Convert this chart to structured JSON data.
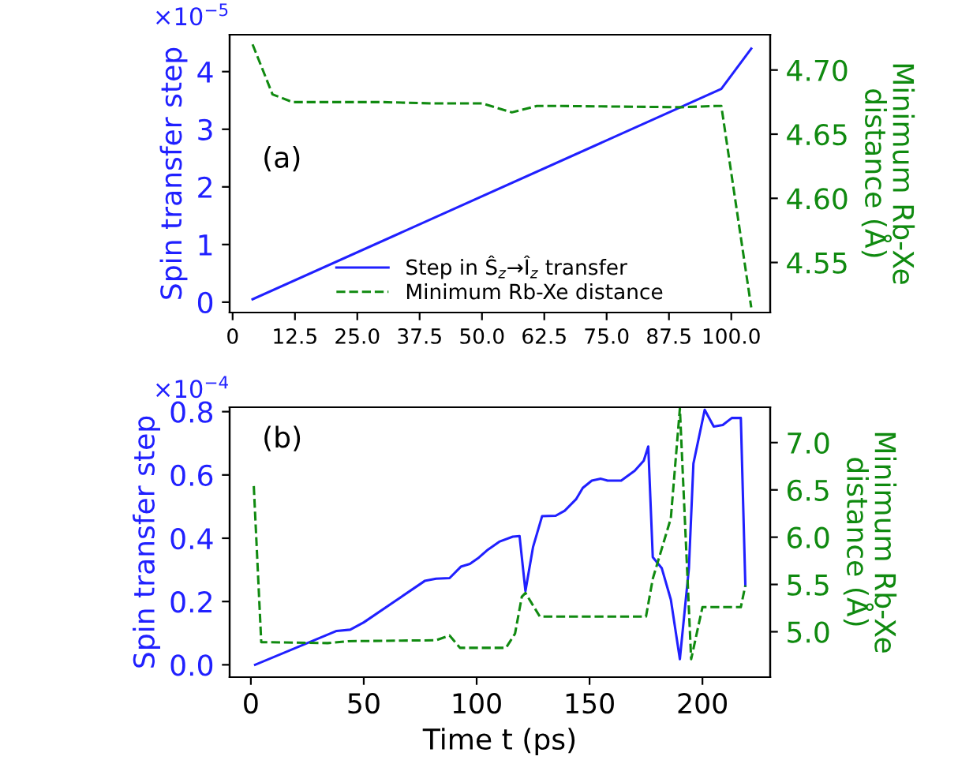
{
  "chart_data": [
    {
      "type": "line",
      "ylabel": "Spin transfer step",
      "y2label": "Minimum Rb-Xe\ndistance (Å)",
      "annotations": [
        "(a)",
        "×10$^{−5}$"
      ],
      "legend": "bottom",
      "grid": false,
      "xlim": [
        -0.6,
        107.8
      ],
      "xticks": [
        0,
        12.5,
        {
          "value": 25,
          "label": "25.0"
        },
        37.5,
        {
          "value": 50,
          "label": "50.0"
        },
        62.5,
        {
          "value": 75,
          "label": "75.0"
        },
        87.5,
        {
          "value": 100,
          "label": "100.0"
        }
      ],
      "ylim": [
        -0.18,
        4.64
      ],
      "yticks": [
        0,
        1,
        2,
        3,
        4
      ],
      "y2lim": [
        4.511,
        4.7275
      ],
      "y2ticks": [
        {
          "value": 4.55,
          "label": "4.55"
        },
        {
          "value": 4.6,
          "label": "4.60"
        },
        {
          "value": 4.65,
          "label": "4.65"
        },
        {
          "value": 4.7,
          "label": "4.70"
        }
      ],
      "series": [
        {
          "name": "Step in Ŝ$_{z}$→Î$_{z}$ transfer",
          "color": "#2020ff",
          "line_style": "solid",
          "x": [
            4,
            98,
            104
          ],
          "values": [
            0.05,
            3.7,
            4.4
          ]
        },
        {
          "name": "Minimum Rb-Xe distance",
          "color": "#108a10",
          "line_style": "dashed",
          "axis": "y2",
          "x": [
            4,
            8,
            12,
            30,
            40,
            50,
            56,
            61,
            65,
            90,
            97,
            98,
            104
          ],
          "values": [
            4.72,
            4.681,
            4.675,
            4.675,
            4.674,
            4.674,
            4.667,
            4.672,
            4.672,
            4.671,
            4.672,
            4.672,
            4.515
          ]
        }
      ]
    },
    {
      "type": "line",
      "xlabel": "Time t (ps)",
      "ylabel": "Spin transfer step",
      "y2label": "Minimum Rb-Xe\ndistance (Å)",
      "annotations": [
        "(b)",
        "×10$^{−4}$"
      ],
      "grid": false,
      "xlim": [
        -9.4,
        230
      ],
      "xticks": [
        0,
        50,
        100,
        150,
        200
      ],
      "ylim": [
        -0.039,
        0.814
      ],
      "yticks": [
        {
          "value": 0,
          "label": "0.0"
        },
        0.2,
        0.4,
        0.6,
        0.8
      ],
      "y2lim": [
        4.52,
        7.374
      ],
      "y2ticks": [
        {
          "value": 5,
          "label": "5.0"
        },
        5.5,
        {
          "value": 6,
          "label": "6.0"
        },
        6.5,
        {
          "value": 7,
          "label": "7.0"
        }
      ],
      "series": [
        {
          "color": "#2020ff",
          "line_style": "solid",
          "x": [
            1.9,
            38,
            44,
            50,
            77,
            82,
            88,
            93,
            97,
            101,
            105,
            110,
            116,
            119,
            121.6,
            125,
            129,
            135,
            139,
            144,
            147,
            151,
            155,
            158,
            164,
            170,
            174,
            176,
            178,
            182,
            186,
            190,
            194,
            196,
            201,
            205,
            209,
            213,
            217,
            219
          ],
          "values": [
            0,
            0.107,
            0.111,
            0.134,
            0.265,
            0.272,
            0.274,
            0.31,
            0.319,
            0.339,
            0.364,
            0.389,
            0.405,
            0.407,
            0.233,
            0.373,
            0.47,
            0.471,
            0.487,
            0.523,
            0.559,
            0.582,
            0.588,
            0.582,
            0.582,
            0.613,
            0.645,
            0.69,
            0.34,
            0.305,
            0.206,
            0.018,
            0.305,
            0.636,
            0.806,
            0.753,
            0.758,
            0.78,
            0.78,
            0.25
          ]
        },
        {
          "color": "#108a10",
          "line_style": "dashed",
          "axis": "y2",
          "x": [
            1.3,
            4.6,
            34,
            43,
            82,
            88,
            92.6,
            113,
            117,
            120,
            121.6,
            128,
            175,
            178,
            186,
            190,
            195,
            200,
            217,
            219
          ],
          "values": [
            6.54,
            4.89,
            4.88,
            4.9,
            4.91,
            4.96,
            4.83,
            4.83,
            4.98,
            5.37,
            5.41,
            5.16,
            5.16,
            5.56,
            6.2,
            7.36,
            4.71,
            5.26,
            5.26,
            5.49
          ]
        }
      ]
    }
  ]
}
